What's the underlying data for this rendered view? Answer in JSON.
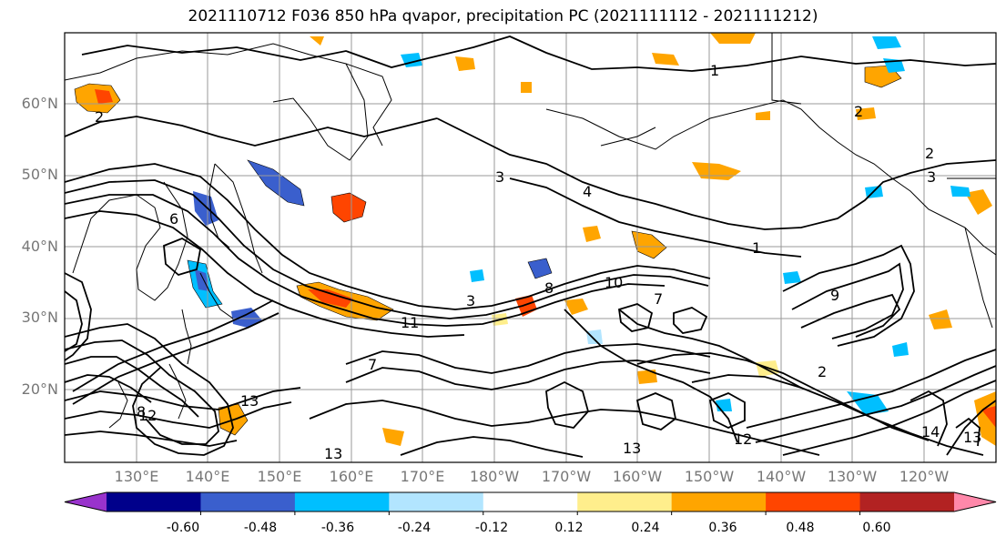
{
  "title": "2021110712 F036 850 hPa qvapor, precipitation PC (2021111112 - 2021111212)",
  "colors": {
    "frame": "#000000",
    "grid": "#999999",
    "coast": "#000000",
    "contour": "#000000",
    "tick_label": "#777777"
  },
  "map": {
    "lat_labels": [
      "60°N",
      "50°N",
      "40°N",
      "30°N",
      "20°N"
    ],
    "lon_labels": [
      "130°E",
      "140°E",
      "150°E",
      "160°E",
      "170°E",
      "180°W",
      "170°W",
      "160°W",
      "150°W",
      "140°W",
      "130°W",
      "120°W"
    ],
    "contour_labels": [
      "1",
      "2",
      "3",
      "4",
      "1",
      "3",
      "2",
      "2",
      "3",
      "10",
      "11",
      "7",
      "12",
      "13",
      "9",
      "8",
      "13",
      "12",
      "14",
      "13",
      "13",
      "2",
      "6",
      "7",
      "8"
    ]
  },
  "colorbar": {
    "colors": [
      "#9933cc",
      "#00008b",
      "#3a5fcd",
      "#00bfff",
      "#b2e5ff",
      "#ffffff",
      "#ffee8c",
      "#ffa500",
      "#ff4500",
      "#b22222",
      "#ff88aa"
    ],
    "tick_labels": [
      "-0.60",
      "-0.48",
      "-0.36",
      "-0.24",
      "-0.12",
      "0.12",
      "0.24",
      "0.36",
      "0.48",
      "0.60"
    ]
  }
}
